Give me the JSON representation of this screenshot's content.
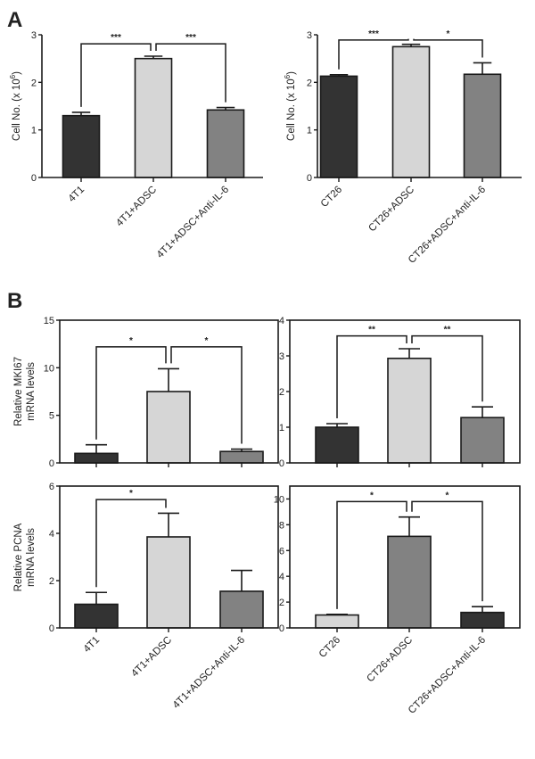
{
  "panels": [
    "A",
    "B"
  ],
  "colors": {
    "dark": "#333333",
    "light": "#d6d6d6",
    "mid": "#828282",
    "axis": "#1a1a1a"
  },
  "chart_data": [
    {
      "type": "bar",
      "panel": "A",
      "ylabel": "Cell No. (x 10",
      "ylabel_sup": "6",
      "ylabel_end": ")",
      "ylim": [
        0,
        3
      ],
      "yticks": [
        "0",
        "1",
        "2",
        "3"
      ],
      "frame": "left-bottom",
      "categories": [
        "4T1",
        "4T1+ADSC",
        "4T1+ADSC+Anti-IL-6"
      ],
      "values": [
        1.3,
        2.5,
        1.42
      ],
      "errors": [
        0.07,
        0.05,
        0.05
      ],
      "bar_colors": [
        "dark",
        "light",
        "mid"
      ],
      "significance": [
        {
          "pair": [
            0,
            1
          ],
          "label": "***",
          "level": 2.81
        },
        {
          "pair": [
            1,
            2
          ],
          "label": "***",
          "level": 2.81
        }
      ],
      "show_xlabels": true
    },
    {
      "type": "bar",
      "panel": "A",
      "ylabel": "Cell No. (x 10",
      "ylabel_sup": "6",
      "ylabel_end": ")",
      "ylim": [
        0,
        3
      ],
      "yticks": [
        "0",
        "1",
        "2",
        "3"
      ],
      "frame": "left-bottom",
      "categories": [
        "CT26",
        "CT26+ADSC",
        "CT26+ADSC+Anti-IL-6"
      ],
      "values": [
        2.13,
        2.75,
        2.17
      ],
      "errors": [
        0.03,
        0.05,
        0.24
      ],
      "bar_colors": [
        "dark",
        "light",
        "mid"
      ],
      "significance": [
        {
          "pair": [
            0,
            1
          ],
          "label": "***",
          "level": 2.89
        },
        {
          "pair": [
            1,
            2
          ],
          "label": "*",
          "level": 2.89
        }
      ],
      "show_xlabels": true
    },
    {
      "type": "bar",
      "panel": "B",
      "ylabel": "Relative MKI67",
      "ylabel2": "mRNA levels",
      "ylim": [
        0,
        15
      ],
      "yticks": [
        "0",
        "5",
        "10",
        "15"
      ],
      "frame": "box",
      "categories": [
        "4T1",
        "4T1+ADSC",
        "4T1+ADSC+Anti-IL-6"
      ],
      "values": [
        1.0,
        7.5,
        1.2
      ],
      "errors": [
        0.9,
        2.4,
        0.25
      ],
      "bar_colors": [
        "dark",
        "light",
        "mid"
      ],
      "significance": [
        {
          "pair": [
            0,
            1
          ],
          "label": "*",
          "level": 12.2
        },
        {
          "pair": [
            1,
            2
          ],
          "label": "*",
          "level": 12.2
        }
      ],
      "show_xlabels": false
    },
    {
      "type": "bar",
      "panel": "B",
      "ylim": [
        0,
        4
      ],
      "yticks": [
        "0",
        "1",
        "2",
        "3",
        "4"
      ],
      "frame": "box",
      "categories": [
        "CT26",
        "CT26+ADSC",
        "CT26+ADSC+Anti-IL-6"
      ],
      "values": [
        1.0,
        2.93,
        1.27
      ],
      "errors": [
        0.1,
        0.27,
        0.3
      ],
      "bar_colors": [
        "dark",
        "light",
        "mid"
      ],
      "significance": [
        {
          "pair": [
            0,
            1
          ],
          "label": "**",
          "level": 3.56
        },
        {
          "pair": [
            1,
            2
          ],
          "label": "**",
          "level": 3.56
        }
      ],
      "show_xlabels": false
    },
    {
      "type": "bar",
      "panel": "B",
      "ylabel": "Relative PCNA",
      "ylabel2": "mRNA levels",
      "ylim": [
        0,
        6
      ],
      "yticks": [
        "0",
        "2",
        "4",
        "6"
      ],
      "frame": "box",
      "categories": [
        "4T1",
        "4T1+ADSC",
        "4T1+ADSC+Anti-IL-6"
      ],
      "values": [
        1.0,
        3.85,
        1.55
      ],
      "errors": [
        0.5,
        1.0,
        0.88
      ],
      "bar_colors": [
        "dark",
        "light",
        "mid"
      ],
      "significance": [
        {
          "pair": [
            0,
            1
          ],
          "label": "*",
          "level": 5.43
        }
      ],
      "show_xlabels": true
    },
    {
      "type": "bar",
      "panel": "B",
      "ylim": [
        0,
        11
      ],
      "yticks": [
        "0",
        "2",
        "4",
        "6",
        "8",
        "10"
      ],
      "frame": "box",
      "categories": [
        "CT26",
        "CT26+ADSC",
        "CT26+ADSC+Anti-IL-6"
      ],
      "values": [
        1.0,
        7.1,
        1.2
      ],
      "errors": [
        0.05,
        1.5,
        0.45
      ],
      "bar_colors": [
        "light",
        "mid",
        "dark"
      ],
      "significance": [
        {
          "pair": [
            0,
            1
          ],
          "label": "*",
          "level": 9.8
        },
        {
          "pair": [
            1,
            2
          ],
          "label": "*",
          "level": 9.8
        }
      ],
      "show_xlabels": true
    }
  ]
}
